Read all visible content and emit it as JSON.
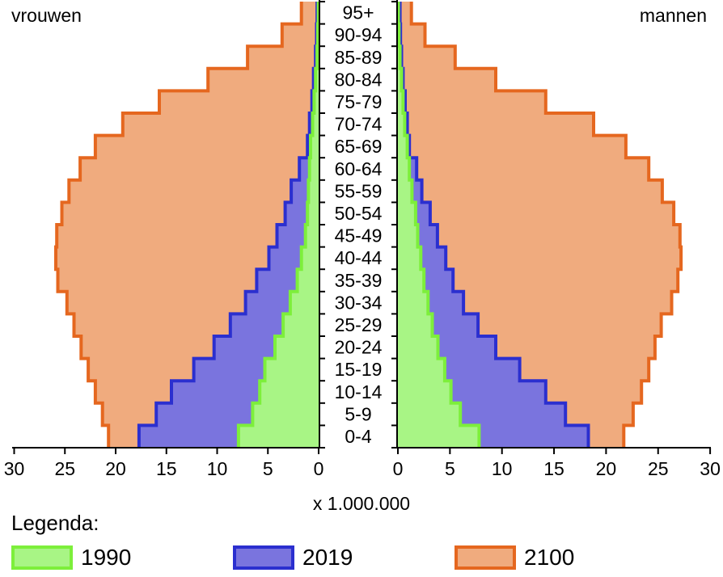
{
  "chart_data": {
    "type": "bar",
    "subtype": "population-pyramid",
    "categories": [
      "0-4",
      "5-9",
      "10-14",
      "15-19",
      "20-24",
      "25-29",
      "30-34",
      "35-39",
      "40-44",
      "45-49",
      "50-54",
      "55-59",
      "60-64",
      "65-69",
      "70-74",
      "75-79",
      "80-84",
      "85-89",
      "90-94",
      "95+"
    ],
    "left_label": "vrouwen",
    "right_label": "mannen",
    "xlabel": "x 1.000.000",
    "xlim": [
      0,
      30
    ],
    "x_ticks": [
      30,
      25,
      20,
      15,
      10,
      5,
      0
    ],
    "x_ticks_right": [
      0,
      5,
      10,
      15,
      20,
      25,
      30
    ],
    "legend_title": "Legenda:",
    "series": [
      {
        "name": "2100",
        "stroke": "#e5671f",
        "fill": "#f0ab7e",
        "vrouwen": [
          20.7,
          21.3,
          22.0,
          22.7,
          23.4,
          24.1,
          24.8,
          25.7,
          25.9,
          25.8,
          25.3,
          24.6,
          23.5,
          22.0,
          19.3,
          15.7,
          10.9,
          7.0,
          3.6,
          1.7
        ],
        "mannen": [
          21.7,
          22.6,
          23.4,
          24.1,
          24.7,
          25.3,
          26.3,
          26.9,
          27.2,
          27.1,
          26.5,
          25.4,
          24.1,
          21.9,
          18.8,
          14.2,
          9.4,
          5.5,
          2.6,
          1.3
        ]
      },
      {
        "name": "2019",
        "stroke": "#2b2fcf",
        "fill": "#7a74de",
        "vrouwen": [
          17.7,
          16.0,
          14.5,
          12.3,
          10.3,
          8.7,
          7.2,
          6.1,
          4.9,
          4.1,
          3.3,
          2.7,
          1.9,
          1.1,
          0.9,
          0.66,
          0.5,
          0.3,
          0.2,
          0.15
        ],
        "mannen": [
          18.3,
          16.1,
          14.2,
          11.7,
          9.4,
          7.7,
          6.3,
          5.3,
          4.6,
          3.8,
          3.1,
          2.3,
          1.8,
          1.1,
          0.9,
          0.7,
          0.5,
          0.35,
          0.25,
          0.2
        ]
      },
      {
        "name": "1990",
        "stroke": "#7def3b",
        "fill": "#a8f585",
        "vrouwen": [
          7.9,
          6.5,
          5.8,
          5.3,
          4.3,
          3.5,
          2.8,
          2.1,
          1.7,
          1.3,
          1.1,
          1.0,
          0.9,
          0.8,
          0.6,
          0.45,
          0.3,
          0.15,
          0.08,
          0.03
        ],
        "mannen": [
          7.8,
          6.0,
          5.1,
          4.5,
          3.85,
          3.3,
          2.9,
          2.5,
          2.2,
          1.9,
          1.7,
          1.35,
          1.1,
          0.9,
          0.65,
          0.5,
          0.35,
          0.2,
          0.1,
          0.05
        ]
      }
    ],
    "legend_order": [
      "1990",
      "2019",
      "2100"
    ]
  }
}
